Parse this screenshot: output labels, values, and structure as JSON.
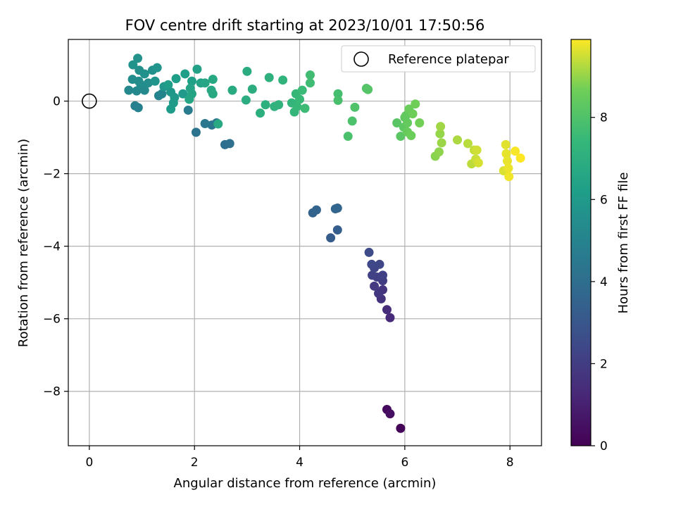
{
  "chart_data": {
    "type": "scatter",
    "title": "FOV centre drift starting at 2023/10/01 17:50:56",
    "xlabel": "Angular distance from reference (arcmin)",
    "ylabel": "Rotation from reference (arcmin)",
    "xlim": [
      -0.4,
      8.6
    ],
    "ylim": [
      -9.5,
      1.7
    ],
    "xticks": [
      0,
      2,
      4,
      6,
      8
    ],
    "yticks": [
      -8,
      -6,
      -4,
      -2,
      0
    ],
    "grid": true,
    "legend": {
      "position": "top-right",
      "entries": [
        {
          "label": "Reference platepar",
          "marker": "open-circle"
        }
      ]
    },
    "reference_point": {
      "x": 0,
      "y": 0
    },
    "colorbar": {
      "label": "Hours from first FF file",
      "range": [
        0,
        9.9
      ],
      "ticks": [
        0,
        2,
        4,
        6,
        8
      ],
      "colormap": "viridis"
    },
    "series": [
      {
        "points": [
          {
            "x": 5.92,
            "y": -9.02,
            "c": 0.1
          },
          {
            "x": 5.66,
            "y": -8.5,
            "c": 0.3
          },
          {
            "x": 5.72,
            "y": -8.62,
            "c": 0.4
          },
          {
            "x": 5.72,
            "y": -5.97,
            "c": 1.3
          },
          {
            "x": 5.66,
            "y": -5.75,
            "c": 1.4
          },
          {
            "x": 5.55,
            "y": -5.45,
            "c": 1.6
          },
          {
            "x": 5.58,
            "y": -5.2,
            "c": 1.7
          },
          {
            "x": 5.5,
            "y": -5.3,
            "c": 1.8
          },
          {
            "x": 5.42,
            "y": -5.1,
            "c": 1.9
          },
          {
            "x": 5.58,
            "y": -4.95,
            "c": 2.0
          },
          {
            "x": 5.47,
            "y": -4.85,
            "c": 2.1
          },
          {
            "x": 5.58,
            "y": -4.8,
            "c": 2.15
          },
          {
            "x": 5.38,
            "y": -4.8,
            "c": 2.2
          },
          {
            "x": 5.42,
            "y": -4.6,
            "c": 2.3
          },
          {
            "x": 5.52,
            "y": -4.5,
            "c": 2.35
          },
          {
            "x": 5.37,
            "y": -4.5,
            "c": 2.4
          },
          {
            "x": 5.32,
            "y": -4.17,
            "c": 2.5
          },
          {
            "x": 4.59,
            "y": -3.77,
            "c": 3.2
          },
          {
            "x": 4.72,
            "y": -3.55,
            "c": 3.3
          },
          {
            "x": 4.25,
            "y": -3.08,
            "c": 3.5
          },
          {
            "x": 4.32,
            "y": -3.0,
            "c": 3.55
          },
          {
            "x": 4.68,
            "y": -2.97,
            "c": 3.6
          },
          {
            "x": 4.72,
            "y": -2.95,
            "c": 3.65
          },
          {
            "x": 2.58,
            "y": -1.2,
            "c": 4.0
          },
          {
            "x": 2.67,
            "y": -1.17,
            "c": 4.1
          },
          {
            "x": 2.03,
            "y": -0.86,
            "c": 4.3
          },
          {
            "x": 2.33,
            "y": -0.66,
            "c": 4.4
          },
          {
            "x": 2.2,
            "y": -0.62,
            "c": 4.45
          },
          {
            "x": 2.42,
            "y": -0.6,
            "c": 4.5
          },
          {
            "x": 1.88,
            "y": -0.25,
            "c": 4.6
          },
          {
            "x": 0.87,
            "y": -0.13,
            "c": 4.8
          },
          {
            "x": 0.93,
            "y": -0.18,
            "c": 4.85
          },
          {
            "x": 1.32,
            "y": 0.15,
            "c": 5.0
          },
          {
            "x": 1.38,
            "y": 0.2,
            "c": 5.1
          },
          {
            "x": 0.75,
            "y": 0.3,
            "c": 5.2
          },
          {
            "x": 0.9,
            "y": 0.28,
            "c": 5.25
          },
          {
            "x": 1.05,
            "y": 0.3,
            "c": 5.3
          },
          {
            "x": 0.98,
            "y": 0.45,
            "c": 5.35
          },
          {
            "x": 0.82,
            "y": 0.6,
            "c": 5.4
          },
          {
            "x": 0.94,
            "y": 0.55,
            "c": 5.45
          },
          {
            "x": 1.12,
            "y": 0.5,
            "c": 5.5
          },
          {
            "x": 0.95,
            "y": 0.85,
            "c": 5.55
          },
          {
            "x": 1.2,
            "y": 0.85,
            "c": 5.6
          },
          {
            "x": 1.05,
            "y": 0.75,
            "c": 5.62
          },
          {
            "x": 0.92,
            "y": 1.18,
            "c": 5.65
          },
          {
            "x": 0.83,
            "y": 1.0,
            "c": 5.7
          },
          {
            "x": 1.29,
            "y": 0.92,
            "c": 5.75
          },
          {
            "x": 1.25,
            "y": 0.55,
            "c": 5.8
          },
          {
            "x": 1.42,
            "y": 0.4,
            "c": 5.85
          },
          {
            "x": 1.55,
            "y": 0.25,
            "c": 5.9
          },
          {
            "x": 1.62,
            "y": 0.1,
            "c": 5.95
          },
          {
            "x": 1.78,
            "y": 0.2,
            "c": 6.0
          },
          {
            "x": 1.6,
            "y": -0.05,
            "c": 6.05
          },
          {
            "x": 1.55,
            "y": -0.22,
            "c": 6.1
          },
          {
            "x": 1.5,
            "y": 0.45,
            "c": 6.15
          },
          {
            "x": 1.65,
            "y": 0.62,
            "c": 6.2
          },
          {
            "x": 1.82,
            "y": 0.75,
            "c": 6.25
          },
          {
            "x": 1.95,
            "y": 0.55,
            "c": 6.3
          },
          {
            "x": 2.05,
            "y": 0.88,
            "c": 6.35
          },
          {
            "x": 2.12,
            "y": 0.5,
            "c": 6.4
          },
          {
            "x": 1.92,
            "y": 0.35,
            "c": 6.45
          },
          {
            "x": 1.95,
            "y": 0.2,
            "c": 6.5
          },
          {
            "x": 1.9,
            "y": 0.05,
            "c": 6.55
          },
          {
            "x": 2.2,
            "y": 0.5,
            "c": 6.6
          },
          {
            "x": 2.32,
            "y": 0.3,
            "c": 6.65
          },
          {
            "x": 2.35,
            "y": 0.6,
            "c": 6.7
          },
          {
            "x": 2.35,
            "y": 0.2,
            "c": 6.72
          },
          {
            "x": 2.45,
            "y": -0.63,
            "c": 6.75
          },
          {
            "x": 2.72,
            "y": 0.3,
            "c": 6.8
          },
          {
            "x": 3.0,
            "y": 0.82,
            "c": 6.85
          },
          {
            "x": 2.98,
            "y": 0.03,
            "c": 6.9
          },
          {
            "x": 3.1,
            "y": 0.33,
            "c": 6.95
          },
          {
            "x": 3.25,
            "y": -0.33,
            "c": 7.0
          },
          {
            "x": 3.35,
            "y": -0.1,
            "c": 7.05
          },
          {
            "x": 3.42,
            "y": 0.65,
            "c": 7.1
          },
          {
            "x": 3.52,
            "y": -0.15,
            "c": 7.15
          },
          {
            "x": 3.6,
            "y": -0.1,
            "c": 7.2
          },
          {
            "x": 3.68,
            "y": 0.58,
            "c": 7.25
          },
          {
            "x": 3.85,
            "y": -0.05,
            "c": 7.3
          },
          {
            "x": 3.9,
            "y": -0.3,
            "c": 7.35
          },
          {
            "x": 3.93,
            "y": 0.2,
            "c": 7.4
          },
          {
            "x": 3.95,
            "y": -0.15,
            "c": 7.45
          },
          {
            "x": 4.0,
            "y": 0.05,
            "c": 7.5
          },
          {
            "x": 4.05,
            "y": 0.3,
            "c": 7.55
          },
          {
            "x": 4.1,
            "y": -0.2,
            "c": 7.6
          },
          {
            "x": 4.2,
            "y": 0.5,
            "c": 7.65
          },
          {
            "x": 4.2,
            "y": 0.72,
            "c": 7.7
          },
          {
            "x": 4.73,
            "y": 0.2,
            "c": 7.8
          },
          {
            "x": 4.73,
            "y": 0.02,
            "c": 7.85
          },
          {
            "x": 4.92,
            "y": -0.97,
            "c": 7.9
          },
          {
            "x": 5.0,
            "y": -0.55,
            "c": 7.95
          },
          {
            "x": 5.05,
            "y": -0.17,
            "c": 8.0
          },
          {
            "x": 5.27,
            "y": 0.35,
            "c": 8.05
          },
          {
            "x": 5.3,
            "y": 0.32,
            "c": 8.1
          },
          {
            "x": 5.85,
            "y": -0.6,
            "c": 8.2
          },
          {
            "x": 5.92,
            "y": -0.97,
            "c": 8.25
          },
          {
            "x": 5.98,
            "y": -0.72,
            "c": 8.3
          },
          {
            "x": 6.0,
            "y": -0.45,
            "c": 8.35
          },
          {
            "x": 6.02,
            "y": -0.4,
            "c": 8.4
          },
          {
            "x": 6.05,
            "y": -0.6,
            "c": 8.45
          },
          {
            "x": 6.05,
            "y": -0.85,
            "c": 8.5
          },
          {
            "x": 6.08,
            "y": -0.22,
            "c": 8.55
          },
          {
            "x": 6.12,
            "y": -0.95,
            "c": 8.6
          },
          {
            "x": 6.15,
            "y": -0.35,
            "c": 8.62
          },
          {
            "x": 6.2,
            "y": -0.08,
            "c": 8.65
          },
          {
            "x": 6.28,
            "y": -0.6,
            "c": 8.7
          },
          {
            "x": 6.58,
            "y": -1.52,
            "c": 8.9
          },
          {
            "x": 6.65,
            "y": -1.4,
            "c": 8.95
          },
          {
            "x": 6.67,
            "y": -0.9,
            "c": 9.0
          },
          {
            "x": 6.7,
            "y": -1.15,
            "c": 9.05
          },
          {
            "x": 6.68,
            "y": -0.7,
            "c": 9.1
          },
          {
            "x": 7.0,
            "y": -1.07,
            "c": 9.2
          },
          {
            "x": 7.2,
            "y": -1.17,
            "c": 9.3
          },
          {
            "x": 7.27,
            "y": -1.73,
            "c": 9.35
          },
          {
            "x": 7.32,
            "y": -1.35,
            "c": 9.4
          },
          {
            "x": 7.35,
            "y": -1.6,
            "c": 9.45
          },
          {
            "x": 7.37,
            "y": -1.35,
            "c": 9.5
          },
          {
            "x": 7.4,
            "y": -1.7,
            "c": 9.55
          },
          {
            "x": 7.88,
            "y": -1.92,
            "c": 9.6
          },
          {
            "x": 7.92,
            "y": -1.2,
            "c": 9.65
          },
          {
            "x": 7.93,
            "y": -1.45,
            "c": 9.7
          },
          {
            "x": 7.95,
            "y": -1.65,
            "c": 9.72
          },
          {
            "x": 7.97,
            "y": -1.85,
            "c": 9.75
          },
          {
            "x": 7.98,
            "y": -2.08,
            "c": 9.8
          },
          {
            "x": 8.1,
            "y": -1.38,
            "c": 9.85
          },
          {
            "x": 8.2,
            "y": -1.57,
            "c": 9.9
          }
        ]
      }
    ]
  }
}
